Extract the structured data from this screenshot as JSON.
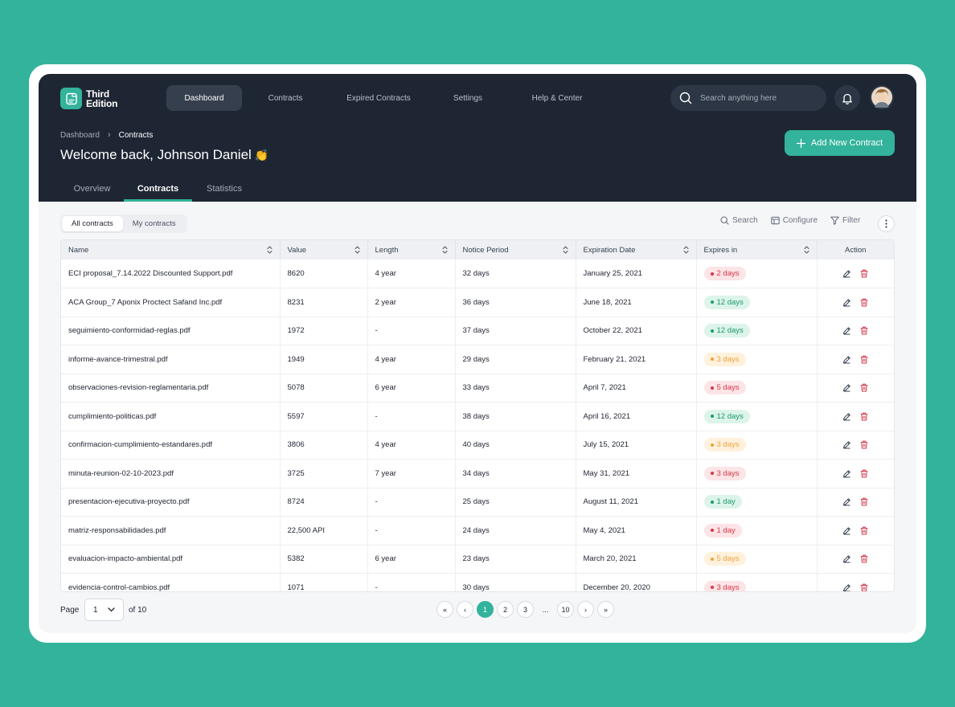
{
  "app": {
    "logo_line1": "Third",
    "logo_line2": "Edition"
  },
  "nav": [
    {
      "label": "Dashboard",
      "active": true
    },
    {
      "label": "Contracts",
      "active": false
    },
    {
      "label": "Expired Contracts",
      "active": false
    },
    {
      "label": "Settings",
      "active": false
    },
    {
      "label": "Help & Center",
      "active": false
    }
  ],
  "search": {
    "placeholder": "Search anything here"
  },
  "breadcrumb": {
    "root": "Dashboard",
    "current": "Contracts"
  },
  "welcome": {
    "text": "Welcome back, Johnson Daniel",
    "emoji": "👏"
  },
  "add_button": {
    "label": "Add New Contract"
  },
  "tabs": [
    {
      "label": "Overview",
      "active": false
    },
    {
      "label": "Contracts",
      "active": true
    },
    {
      "label": "Statistics",
      "active": false
    }
  ],
  "segmented": [
    {
      "label": "All contracts",
      "active": true
    },
    {
      "label": "My contracts",
      "active": false
    }
  ],
  "toolbar": {
    "search_label": "Search",
    "configure_label": "Configure",
    "filter_label": "Filter"
  },
  "table": {
    "columns": [
      "Name",
      "Value",
      "Length",
      "Notice Period",
      "Expiration Date",
      "Expires in",
      "Action"
    ],
    "rows": [
      {
        "name": "ECI proposal_7.14.2022 Discounted Support.pdf",
        "value": "8620",
        "length": "4 year",
        "notice": "32 days",
        "expiration": "January 25, 2021",
        "expires_in": "2 days",
        "status": "red"
      },
      {
        "name": "ACA Group_7 Aponix Proctect Safand Inc.pdf",
        "value": "8231",
        "length": "2 year",
        "notice": "36 days",
        "expiration": "June 18, 2021",
        "expires_in": "12 days",
        "status": "green"
      },
      {
        "name": "seguimiento-conformidad-reglas.pdf",
        "value": "1972",
        "length": "-",
        "notice": "37 days",
        "expiration": "October 22, 2021",
        "expires_in": "12 days",
        "status": "green"
      },
      {
        "name": "informe-avance-trimestral.pdf",
        "value": "1949",
        "length": "4 year",
        "notice": "29 days",
        "expiration": "February 21, 2021",
        "expires_in": "3 days",
        "status": "orange"
      },
      {
        "name": "observaciones-revision-reglamentaria.pdf",
        "value": "5078",
        "length": "6 year",
        "notice": "33 days",
        "expiration": "April 7, 2021",
        "expires_in": "5 days",
        "status": "red"
      },
      {
        "name": "cumplimiento-politicas.pdf",
        "value": "5597",
        "length": "-",
        "notice": "38 days",
        "expiration": "April 16, 2021",
        "expires_in": "12 days",
        "status": "green"
      },
      {
        "name": "confirmacion-cumplimiento-estandares.pdf",
        "value": "3806",
        "length": "4 year",
        "notice": "40 days",
        "expiration": "July 15, 2021",
        "expires_in": "3 days",
        "status": "orange"
      },
      {
        "name": "minuta-reunion-02-10-2023.pdf",
        "value": "3725",
        "length": "7 year",
        "notice": "34 days",
        "expiration": "May 31, 2021",
        "expires_in": "3 days",
        "status": "red"
      },
      {
        "name": "presentacion-ejecutiva-proyecto.pdf",
        "value": "8724",
        "length": "-",
        "notice": "25 days",
        "expiration": "August 11, 2021",
        "expires_in": "1 day",
        "status": "green"
      },
      {
        "name": "matriz-responsabilidades.pdf",
        "value": "22,500 API",
        "length": "-",
        "notice": "24 days",
        "expiration": "May 4, 2021",
        "expires_in": "1 day",
        "status": "red"
      },
      {
        "name": "evaluacion-impacto-ambiental.pdf",
        "value": "5382",
        "length": "6 year",
        "notice": "23 days",
        "expiration": "March 20, 2021",
        "expires_in": "5 days",
        "status": "orange"
      },
      {
        "name": "evidencia-control-cambios.pdf",
        "value": "1071",
        "length": "-",
        "notice": "30 days",
        "expiration": "December 20, 2020",
        "expires_in": "3 days",
        "status": "red"
      }
    ]
  },
  "pagination": {
    "page_label": "Page",
    "current": "1",
    "of_label": "of 10",
    "first": "«",
    "prev": "‹",
    "pages": [
      "1",
      "2",
      "3"
    ],
    "ellipsis": "...",
    "last_page": "10",
    "next": "›",
    "last": "»"
  },
  "colors": {
    "accent": "#33b39b",
    "header_bg": "#1e2633",
    "danger": "#d6364a",
    "success": "#1d9b6c",
    "warning": "#eda23a"
  }
}
